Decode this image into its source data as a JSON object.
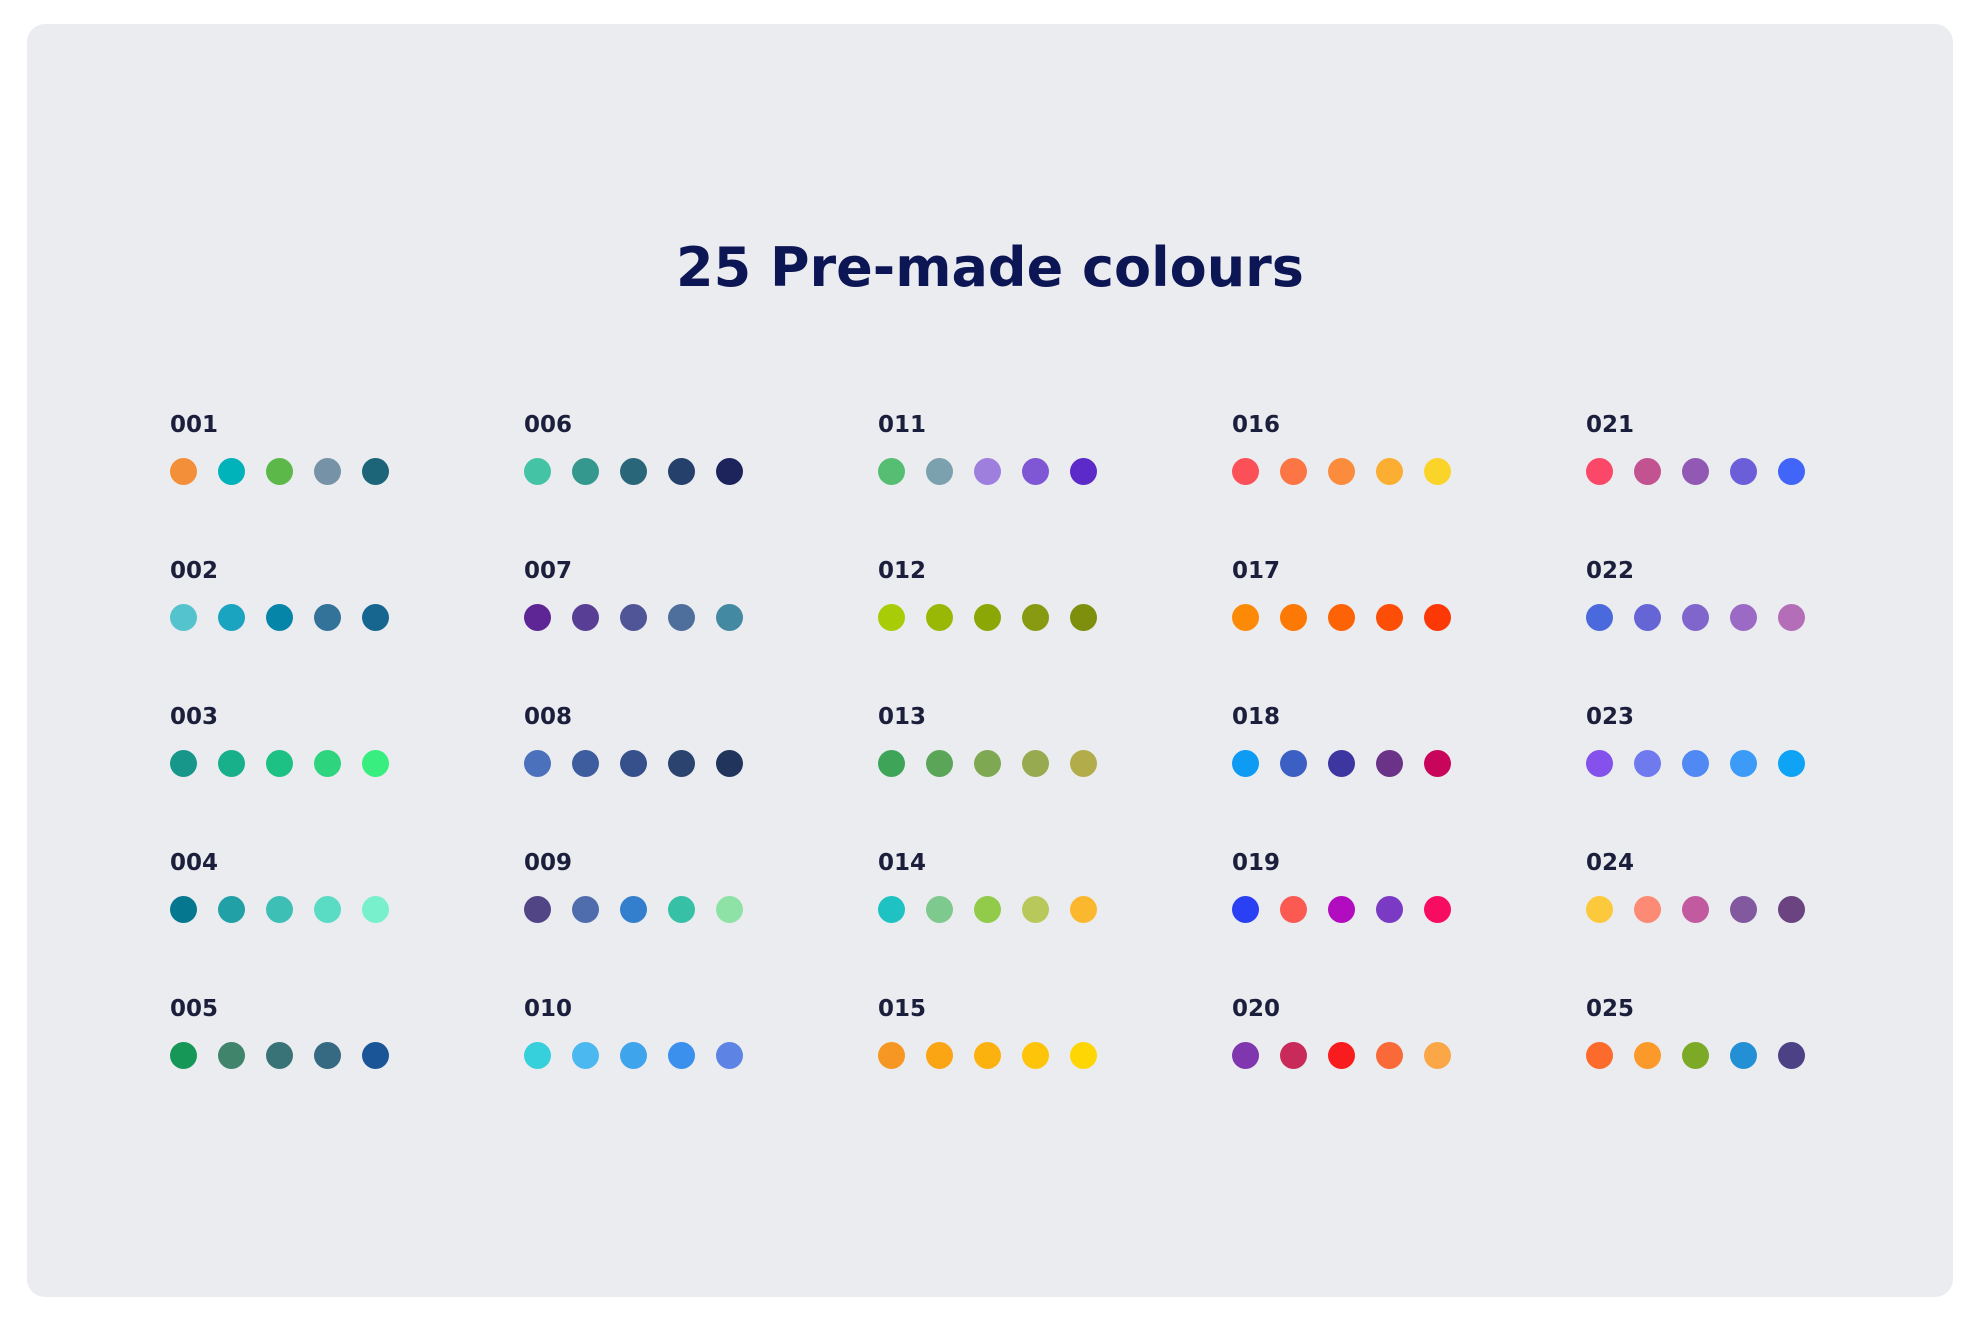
{
  "title": "25 Pre-made colours",
  "palettes": [
    {
      "label": "001",
      "colors": [
        "#f28f38",
        "#00b2b9",
        "#5db84a",
        "#7592a6",
        "#1c6478"
      ]
    },
    {
      "label": "002",
      "colors": [
        "#54c3cd",
        "#1ba4c0",
        "#0585a8",
        "#33739a",
        "#176690"
      ]
    },
    {
      "label": "003",
      "colors": [
        "#17968a",
        "#17b08a",
        "#1dc184",
        "#2fd47f",
        "#38ee7e"
      ]
    },
    {
      "label": "004",
      "colors": [
        "#057890",
        "#21a0a6",
        "#3ebfb6",
        "#5adcc4",
        "#78f0cc"
      ]
    },
    {
      "label": "005",
      "colors": [
        "#179757",
        "#3f846b",
        "#3a7377",
        "#356a82",
        "#1a5697"
      ]
    },
    {
      "label": "006",
      "colors": [
        "#45c4a5",
        "#35988f",
        "#2a6679",
        "#25406a",
        "#1d245c"
      ]
    },
    {
      "label": "007",
      "colors": [
        "#5e2595",
        "#593e95",
        "#4f5596",
        "#4e6e9c",
        "#4289a1"
      ]
    },
    {
      "label": "008",
      "colors": [
        "#4b70bc",
        "#3e5d9e",
        "#35508a",
        "#2b436f",
        "#20345c"
      ]
    },
    {
      "label": "009",
      "colors": [
        "#524586",
        "#4f6dad",
        "#337fcd",
        "#36c0a6",
        "#8ee2a5"
      ]
    },
    {
      "label": "010",
      "colors": [
        "#35d0dc",
        "#4cb8f0",
        "#3ea4ec",
        "#3a90ec",
        "#5d84e4"
      ]
    },
    {
      "label": "011",
      "colors": [
        "#55be73",
        "#7ba0ae",
        "#9e7fde",
        "#7f56d3",
        "#5b2ac8"
      ]
    },
    {
      "label": "012",
      "colors": [
        "#a8cc06",
        "#98b805",
        "#8aa705",
        "#879a12",
        "#7e8f0e"
      ]
    },
    {
      "label": "013",
      "colors": [
        "#3ea558",
        "#5aa557",
        "#7fa852",
        "#98aa4f",
        "#b3ac4a"
      ]
    },
    {
      "label": "014",
      "colors": [
        "#1fc2c2",
        "#7ec98e",
        "#91cb49",
        "#b8c85b",
        "#fbb82e"
      ]
    },
    {
      "label": "015",
      "colors": [
        "#f69724",
        "#fba514",
        "#fcb20e",
        "#fdc40a",
        "#fdd604"
      ]
    },
    {
      "label": "016",
      "colors": [
        "#fb5057",
        "#fb7545",
        "#fb8c3e",
        "#fbae32",
        "#fbd42a"
      ]
    },
    {
      "label": "017",
      "colors": [
        "#fc8a07",
        "#fc7906",
        "#fc6306",
        "#fc4e06",
        "#fc3906"
      ]
    },
    {
      "label": "018",
      "colors": [
        "#0e9bf4",
        "#3c5fc4",
        "#3e36a0",
        "#6a3388",
        "#c8055a"
      ]
    },
    {
      "label": "019",
      "colors": [
        "#2a40f4",
        "#fb5a52",
        "#b20cc0",
        "#7b3ac4",
        "#f80c62"
      ]
    },
    {
      "label": "020",
      "colors": [
        "#8036ae",
        "#c82b5a",
        "#f81c1e",
        "#fa6a38",
        "#fba748"
      ]
    },
    {
      "label": "021",
      "colors": [
        "#fc4868",
        "#c35290",
        "#9259b4",
        "#6c5ed8",
        "#4165f8"
      ]
    },
    {
      "label": "022",
      "colors": [
        "#4a69dc",
        "#6565d6",
        "#8066cc",
        "#9b6ac4",
        "#b46eb8"
      ]
    },
    {
      "label": "023",
      "colors": [
        "#8451ec",
        "#6f7aef",
        "#5088f4",
        "#3c9bf6",
        "#0ea3f4"
      ]
    },
    {
      "label": "024",
      "colors": [
        "#fcc93c",
        "#fc8a75",
        "#c25aa0",
        "#82589e",
        "#6b4381"
      ]
    },
    {
      "label": "025",
      "colors": [
        "#fc6a2c",
        "#fb9a2a",
        "#7daa26",
        "#2390d6",
        "#4c4184"
      ]
    }
  ]
}
